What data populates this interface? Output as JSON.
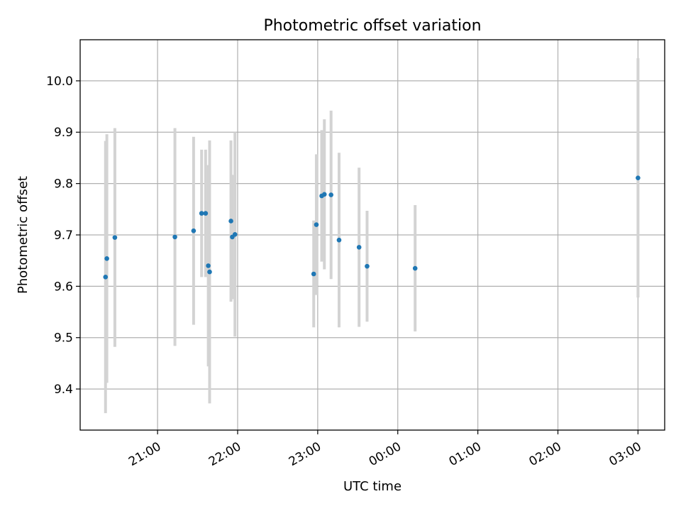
{
  "chart_data": {
    "type": "scatter",
    "title": "Photometric offset variation",
    "xlabel": "UTC time",
    "ylabel": "Photometric offset",
    "x_axis_type": "time",
    "xlim": [
      "20:02",
      "03:20"
    ],
    "ylim": [
      9.32,
      10.08
    ],
    "x_ticks": [
      "21:00",
      "22:00",
      "23:00",
      "00:00",
      "01:00",
      "02:00",
      "03:00"
    ],
    "x_tick_rotation": "30 degrees",
    "y_ticks": [
      "9.4",
      "9.5",
      "9.6",
      "9.7",
      "9.8",
      "9.9",
      "10.0"
    ],
    "grid": true,
    "legend": "none",
    "marker_color": "#1f77b4",
    "errorbar_color": "#d3d3d3",
    "points": [
      {
        "time": "20:21",
        "y": 9.618,
        "err": 0.265
      },
      {
        "time": "20:22",
        "y": 9.654,
        "err": 0.242
      },
      {
        "time": "20:28",
        "y": 9.695,
        "err": 0.213
      },
      {
        "time": "21:13",
        "y": 9.696,
        "err": 0.212
      },
      {
        "time": "21:27",
        "y": 9.708,
        "err": 0.183
      },
      {
        "time": "21:33",
        "y": 9.742,
        "err": 0.124
      },
      {
        "time": "21:36",
        "y": 9.742,
        "err": 0.124
      },
      {
        "time": "21:38",
        "y": 9.64,
        "err": 0.196
      },
      {
        "time": "21:39",
        "y": 9.628,
        "err": 0.256
      },
      {
        "time": "21:55",
        "y": 9.727,
        "err": 0.157
      },
      {
        "time": "21:56",
        "y": 9.696,
        "err": 0.121
      },
      {
        "time": "21:58",
        "y": 9.701,
        "err": 0.199
      },
      {
        "time": "22:57",
        "y": 9.624,
        "err": 0.104
      },
      {
        "time": "22:59",
        "y": 9.72,
        "err": 0.137
      },
      {
        "time": "23:03",
        "y": 9.776,
        "err": 0.128
      },
      {
        "time": "23:05",
        "y": 9.779,
        "err": 0.146
      },
      {
        "time": "23:10",
        "y": 9.778,
        "err": 0.164
      },
      {
        "time": "23:16",
        "y": 9.69,
        "err": 0.17
      },
      {
        "time": "23:31",
        "y": 9.676,
        "err": 0.155
      },
      {
        "time": "23:37",
        "y": 9.639,
        "err": 0.108
      },
      {
        "time": "00:13",
        "y": 9.635,
        "err": 0.123
      },
      {
        "time": "03:00",
        "y": 9.811,
        "err": 0.233
      }
    ]
  }
}
